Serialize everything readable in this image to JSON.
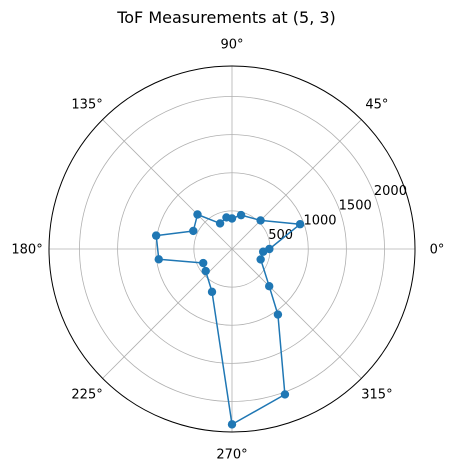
{
  "chart_data": {
    "type": "line",
    "subtype": "polar",
    "title": "ToF Measurements at (5, 3)",
    "xlabel": "",
    "ylabel": "",
    "angle_ticks": [
      "0°",
      "45°",
      "90°",
      "135°",
      "180°",
      "225°",
      "270°",
      "315°"
    ],
    "angle_tick_values_deg": [
      0,
      45,
      90,
      135,
      180,
      225,
      270,
      315
    ],
    "radial_ticks": [
      "500",
      "1000",
      "1500",
      "2000"
    ],
    "radial_tick_values": [
      500,
      1000,
      1500,
      2000
    ],
    "rlim": [
      0,
      2400
    ],
    "grid": true,
    "marker": "circle",
    "series": [
      {
        "color": "#1f77b4",
        "points": [
          {
            "theta_deg": 0,
            "r": 490
          },
          {
            "theta_deg": 20,
            "r": 950
          },
          {
            "theta_deg": 45,
            "r": 530
          },
          {
            "theta_deg": 75,
            "r": 460
          },
          {
            "theta_deg": 90,
            "r": 400
          },
          {
            "theta_deg": 100,
            "r": 420
          },
          {
            "theta_deg": 115,
            "r": 370
          },
          {
            "theta_deg": 135,
            "r": 640
          },
          {
            "theta_deg": 155,
            "r": 560
          },
          {
            "theta_deg": 170,
            "r": 1010
          },
          {
            "theta_deg": 188,
            "r": 970
          },
          {
            "theta_deg": 206,
            "r": 420
          },
          {
            "theta_deg": 220,
            "r": 450
          },
          {
            "theta_deg": 245,
            "r": 620
          },
          {
            "theta_deg": 270,
            "r": 2300
          },
          {
            "theta_deg": 290,
            "r": 2030
          },
          {
            "theta_deg": 305,
            "r": 1050
          },
          {
            "theta_deg": 315,
            "r": 690
          },
          {
            "theta_deg": 340,
            "r": 400
          },
          {
            "theta_deg": 355,
            "r": 410
          }
        ]
      }
    ]
  }
}
